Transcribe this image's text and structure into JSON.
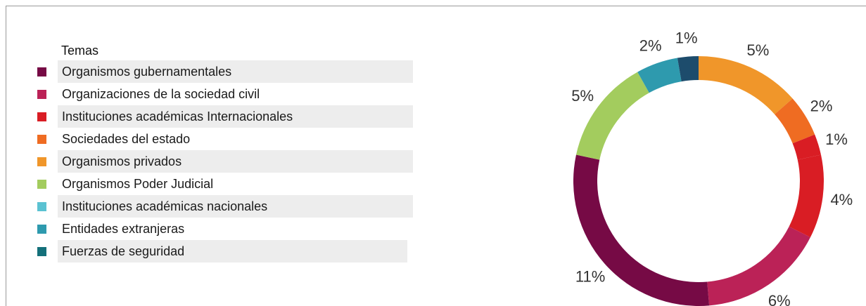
{
  "legend": {
    "title": "Temas",
    "items": [
      {
        "label": "Organismos gubernamentales",
        "color": "#760a45",
        "shaded": true
      },
      {
        "label": "Organizaciones de la sociedad civil",
        "color": "#bb2257",
        "shaded": false
      },
      {
        "label": "Instituciones académicas Internacionales",
        "color": "#d91d24",
        "shaded": true
      },
      {
        "label": "Sociedades del estado",
        "color": "#ef6c22",
        "shaded": false
      },
      {
        "label": "Organismos privados",
        "color": "#f0962a",
        "shaded": true
      },
      {
        "label": "Organismos Poder Judicial",
        "color": "#a3cc5e",
        "shaded": false
      },
      {
        "label": "Instituciones académicas nacionales",
        "color": "#5bc2d2",
        "shaded": true
      },
      {
        "label": "Entidades extranjeras",
        "color": "#2e9aae",
        "shaded": false
      },
      {
        "label": "Fuerzas de seguridad",
        "color": "#14707a",
        "shaded": true
      }
    ]
  },
  "chart_data": {
    "type": "pie",
    "donut": true,
    "values": [
      5,
      2,
      1,
      4,
      6,
      11,
      5,
      2,
      1
    ],
    "labels": [
      "5%",
      "2%",
      "1%",
      "4%",
      "6%",
      "11%",
      "5%",
      "2%",
      "1%"
    ],
    "colors": [
      "#f0962a",
      "#ef6c22",
      "#d91d24",
      "#d91d24",
      "#bb2257",
      "#760a45",
      "#a3cc5e",
      "#2e9aae",
      "#1d4c6c"
    ],
    "start": "top",
    "direction": "clockwise"
  }
}
